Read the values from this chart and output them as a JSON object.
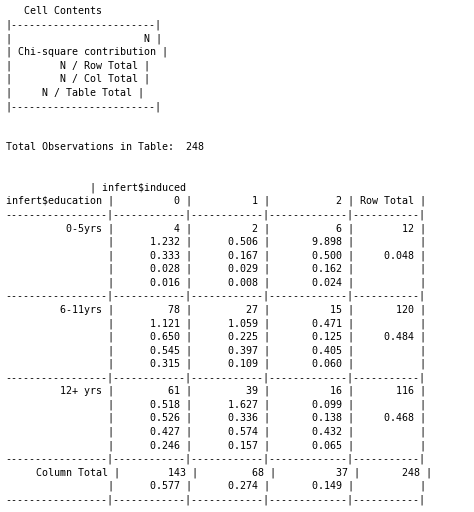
{
  "bg_color": "#ffffff",
  "text_color": "#000000",
  "font_family": "monospace",
  "font_size": 7.2,
  "lines": [
    "   Cell Contents",
    "|------------------------|",
    "|                      N |",
    "| Chi-square contribution |",
    "|        N / Row Total |",
    "|        N / Col Total |",
    "|     N / Table Total |",
    "|------------------------|",
    "",
    "",
    "Total Observations in Table:  248",
    "",
    "",
    "              | infert$induced",
    "infert$education |          0 |          1 |           2 | Row Total |",
    "-----------------|------------|------------|-------------|-----------|",
    "          0-5yrs |          4 |          2 |           6 |        12 |",
    "                 |      1.232 |      0.506 |       9.898 |           |",
    "                 |      0.333 |      0.167 |       0.500 |     0.048 |",
    "                 |      0.028 |      0.029 |       0.162 |           |",
    "                 |      0.016 |      0.008 |       0.024 |           |",
    "-----------------|------------|------------|-------------|-----------|",
    "         6-11yrs |         78 |         27 |          15 |       120 |",
    "                 |      1.121 |      1.059 |       0.471 |           |",
    "                 |      0.650 |      0.225 |       0.125 |     0.484 |",
    "                 |      0.545 |      0.397 |       0.405 |           |",
    "                 |      0.315 |      0.109 |       0.060 |           |",
    "-----------------|------------|------------|-------------|-----------|",
    "         12+ yrs |         61 |         39 |          16 |       116 |",
    "                 |      0.518 |      1.627 |       0.099 |           |",
    "                 |      0.526 |      0.336 |       0.138 |     0.468 |",
    "                 |      0.427 |      0.574 |       0.432 |           |",
    "                 |      0.246 |      0.157 |       0.065 |           |",
    "-----------------|------------|------------|-------------|-----------|",
    "     Column Total |        143 |         68 |          37 |       248 |",
    "                 |      0.577 |      0.274 |       0.149 |           |",
    "-----------------|------------|------------|-------------|-----------|"
  ]
}
